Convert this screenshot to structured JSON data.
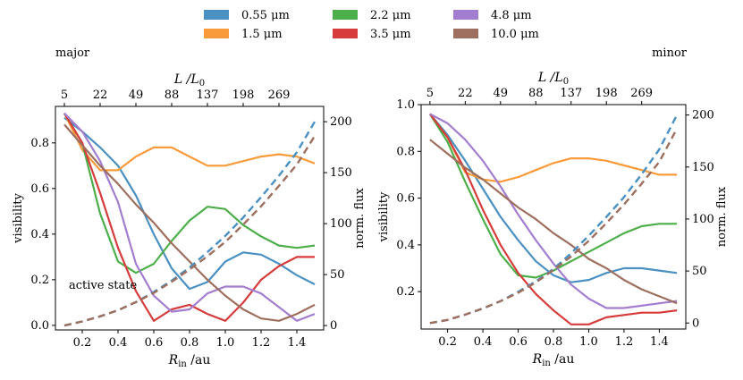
{
  "legend": [
    {
      "label": "0.55 μm",
      "color": "#4a90c2"
    },
    {
      "label": "1.5 μm",
      "color": "#f99b3b"
    },
    {
      "label": "2.2 μm",
      "color": "#4daf4a"
    },
    {
      "label": "3.5 μm",
      "color": "#d63c3c"
    },
    {
      "label": "4.8 μm",
      "color": "#a37dcf"
    },
    {
      "label": "10.0 μm",
      "color": "#9e6f5e"
    }
  ],
  "chart_data": [
    {
      "type": "line",
      "title": "major",
      "annotation": "active state",
      "xlabel": "R_in /au",
      "ylabel": "visibility",
      "y2label": "norm. flux",
      "topxlabel": "L /L_0",
      "xlim": [
        0.05,
        1.55
      ],
      "ylim": [
        -0.02,
        0.96
      ],
      "y2lim": [
        -4.3,
        215
      ],
      "xticks": [
        0.2,
        0.4,
        0.6,
        0.8,
        1.0,
        1.2,
        1.4
      ],
      "yticks": [
        0.0,
        0.2,
        0.4,
        0.6,
        0.8
      ],
      "y2ticks": [
        0,
        50,
        100,
        150,
        200
      ],
      "top_ticks": [
        {
          "x": 0.1,
          "label": "5"
        },
        {
          "x": 0.3,
          "label": "22"
        },
        {
          "x": 0.5,
          "label": "49"
        },
        {
          "x": 0.7,
          "label": "88"
        },
        {
          "x": 0.9,
          "label": "137"
        },
        {
          "x": 1.1,
          "label": "198"
        },
        {
          "x": 1.3,
          "label": "269"
        }
      ],
      "x": [
        0.1,
        0.2,
        0.3,
        0.4,
        0.5,
        0.6,
        0.7,
        0.8,
        0.9,
        1.0,
        1.1,
        1.2,
        1.3,
        1.4,
        1.5
      ],
      "series": [
        {
          "name": "0.55 μm",
          "values": [
            0.91,
            0.85,
            0.78,
            0.7,
            0.57,
            0.4,
            0.25,
            0.16,
            0.19,
            0.28,
            0.32,
            0.31,
            0.27,
            0.22,
            0.18
          ]
        },
        {
          "name": "1.5 μm",
          "values": [
            0.93,
            0.77,
            0.68,
            0.68,
            0.74,
            0.78,
            0.78,
            0.74,
            0.7,
            0.7,
            0.72,
            0.74,
            0.75,
            0.74,
            0.71
          ]
        },
        {
          "name": "2.2 μm",
          "values": [
            0.93,
            0.8,
            0.49,
            0.28,
            0.23,
            0.27,
            0.37,
            0.46,
            0.52,
            0.51,
            0.44,
            0.39,
            0.35,
            0.34,
            0.35
          ]
        },
        {
          "name": "3.5 μm",
          "values": [
            0.93,
            0.8,
            0.58,
            0.34,
            0.15,
            0.02,
            0.07,
            0.09,
            0.05,
            0.02,
            0.1,
            0.2,
            0.26,
            0.3,
            0.3
          ]
        },
        {
          "name": "4.8 μm",
          "values": [
            0.93,
            0.85,
            0.72,
            0.54,
            0.27,
            0.13,
            0.06,
            0.07,
            0.14,
            0.17,
            0.17,
            0.14,
            0.08,
            0.02,
            0.05
          ]
        },
        {
          "name": "10.0 μm",
          "values": [
            0.88,
            0.79,
            0.7,
            0.62,
            0.53,
            0.45,
            0.36,
            0.28,
            0.2,
            0.13,
            0.07,
            0.03,
            0.02,
            0.05,
            0.09
          ]
        }
      ],
      "flux_series": [
        {
          "name": "0.55 μm",
          "values": [
            0,
            4,
            9,
            15,
            23,
            33,
            44,
            57,
            72,
            88,
            106,
            126,
            147,
            170,
            200
          ]
        },
        {
          "name": "10.0 μm",
          "values": [
            0,
            4,
            9,
            15,
            23,
            32,
            43,
            55,
            68,
            82,
            99,
            117,
            137,
            158,
            186
          ]
        }
      ]
    },
    {
      "type": "line",
      "title": "minor",
      "xlabel": "R_in /au",
      "ylabel": "visibility",
      "y2label": "norm. flux",
      "topxlabel": "L /L_0",
      "xlim": [
        0.05,
        1.55
      ],
      "ylim": [
        0.04,
        1.0
      ],
      "y2lim": [
        -5.8,
        210
      ],
      "xticks": [
        0.2,
        0.4,
        0.6,
        0.8,
        1.0,
        1.2,
        1.4
      ],
      "yticks": [
        0.2,
        0.4,
        0.6,
        0.8,
        1.0
      ],
      "y2ticks": [
        0,
        50,
        100,
        150,
        200
      ],
      "top_ticks": [
        {
          "x": 0.1,
          "label": "5"
        },
        {
          "x": 0.3,
          "label": "22"
        },
        {
          "x": 0.5,
          "label": "49"
        },
        {
          "x": 0.7,
          "label": "88"
        },
        {
          "x": 0.9,
          "label": "137"
        },
        {
          "x": 1.1,
          "label": "198"
        },
        {
          "x": 1.3,
          "label": "269"
        }
      ],
      "x": [
        0.1,
        0.2,
        0.3,
        0.4,
        0.5,
        0.6,
        0.7,
        0.8,
        0.9,
        1.0,
        1.1,
        1.2,
        1.3,
        1.4,
        1.5
      ],
      "series": [
        {
          "name": "0.55 μm",
          "values": [
            0.96,
            0.87,
            0.76,
            0.64,
            0.52,
            0.42,
            0.33,
            0.27,
            0.24,
            0.25,
            0.28,
            0.3,
            0.3,
            0.29,
            0.28
          ]
        },
        {
          "name": "1.5 μm",
          "values": [
            0.96,
            0.86,
            0.71,
            0.68,
            0.67,
            0.69,
            0.72,
            0.75,
            0.77,
            0.77,
            0.76,
            0.74,
            0.72,
            0.7,
            0.7
          ]
        },
        {
          "name": "2.2 μm",
          "values": [
            0.96,
            0.84,
            0.67,
            0.51,
            0.36,
            0.27,
            0.26,
            0.29,
            0.33,
            0.37,
            0.41,
            0.45,
            0.48,
            0.49,
            0.49
          ]
        },
        {
          "name": "3.5 μm",
          "values": [
            0.96,
            0.86,
            0.72,
            0.55,
            0.4,
            0.28,
            0.19,
            0.12,
            0.06,
            0.06,
            0.09,
            0.1,
            0.11,
            0.11,
            0.12
          ]
        },
        {
          "name": "4.8 μm",
          "values": [
            0.96,
            0.92,
            0.85,
            0.76,
            0.65,
            0.53,
            0.42,
            0.32,
            0.23,
            0.17,
            0.13,
            0.13,
            0.14,
            0.15,
            0.16
          ]
        },
        {
          "name": "10.0 μm",
          "values": [
            0.85,
            0.79,
            0.73,
            0.68,
            0.62,
            0.56,
            0.51,
            0.45,
            0.4,
            0.34,
            0.3,
            0.25,
            0.21,
            0.18,
            0.15
          ]
        }
      ],
      "flux_series": [
        {
          "name": "0.55 μm",
          "values": [
            0,
            3,
            8,
            14,
            21,
            30,
            40,
            52,
            67,
            84,
            102,
            121,
            143,
            167,
            200
          ]
        },
        {
          "name": "10.0 μm",
          "values": [
            0,
            3,
            8,
            14,
            21,
            29,
            39,
            51,
            64,
            79,
            96,
            114,
            134,
            155,
            187
          ]
        }
      ]
    }
  ]
}
